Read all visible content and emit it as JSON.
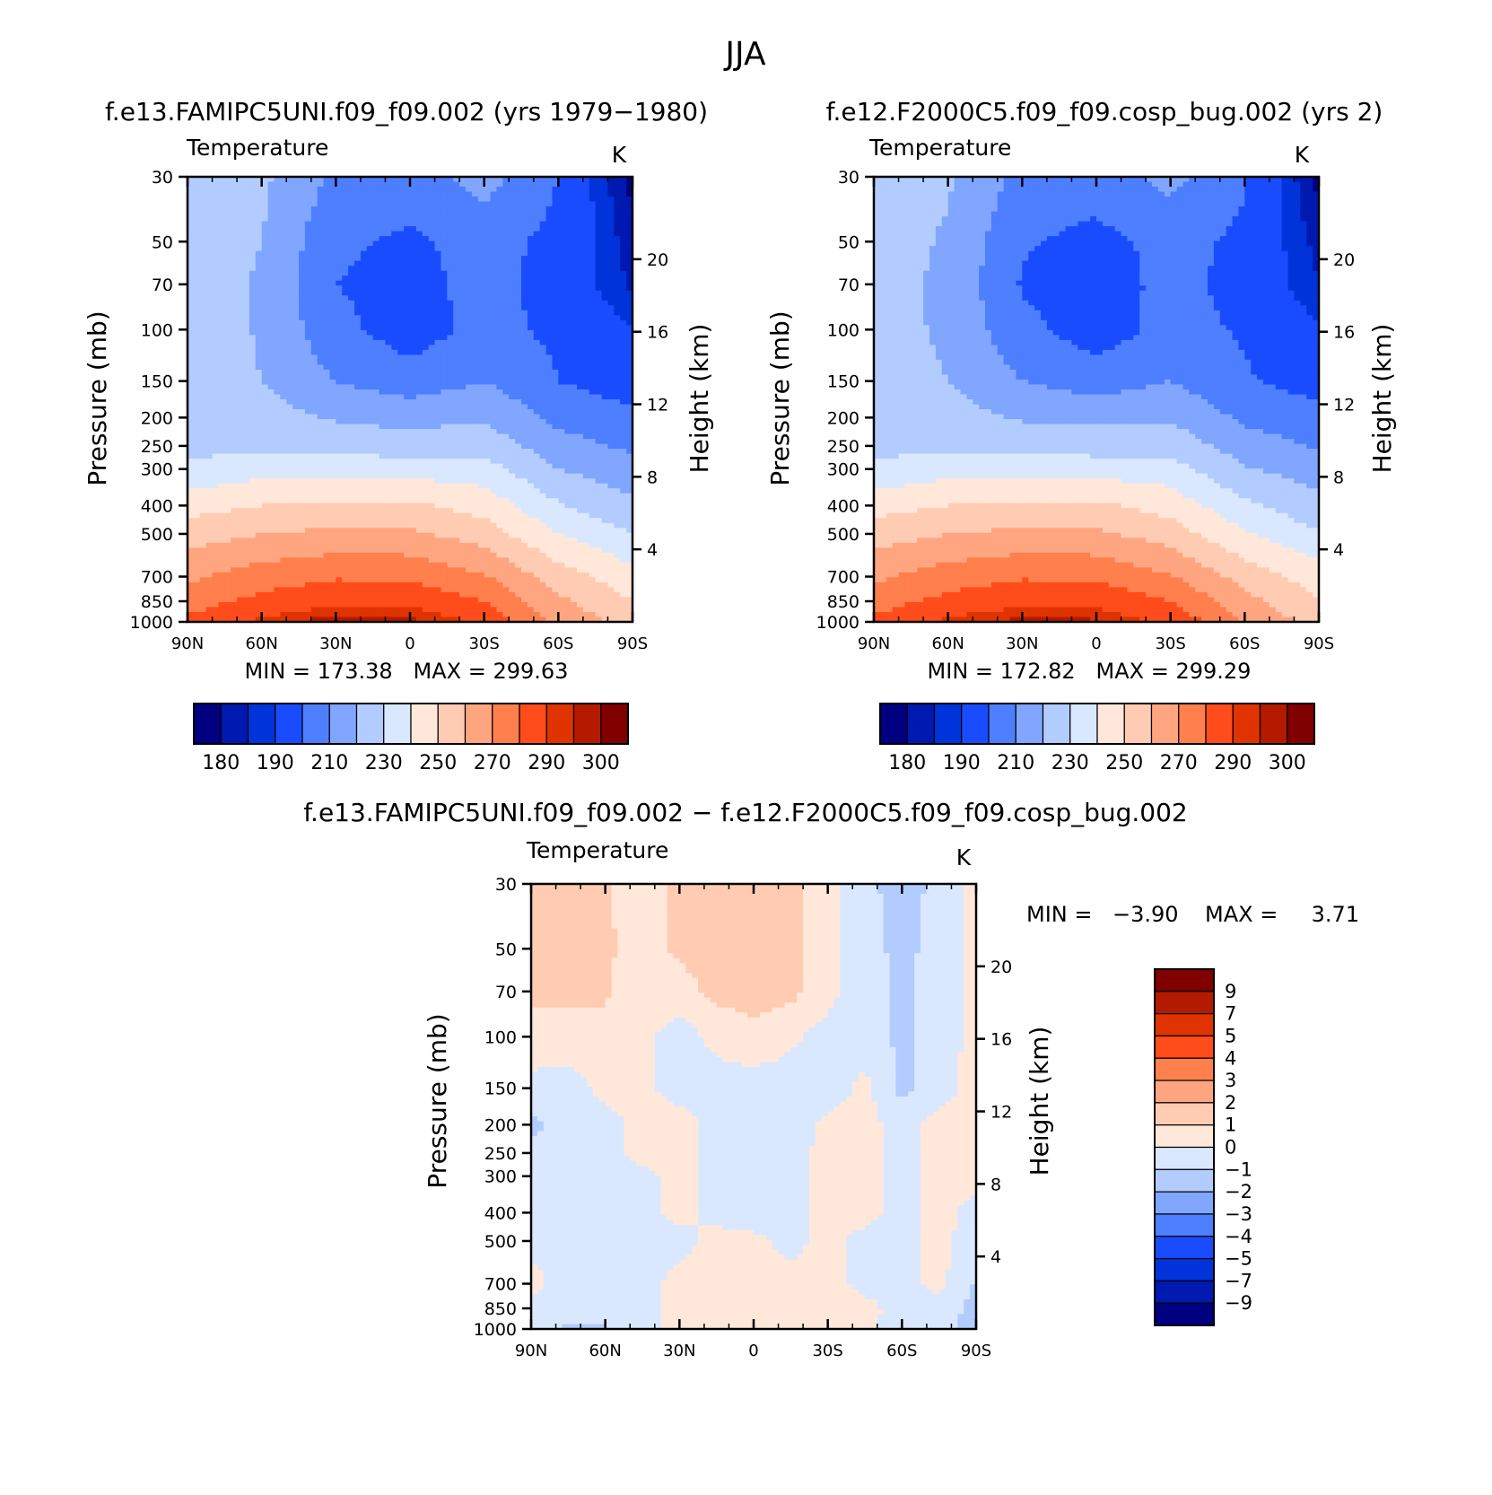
{
  "figure_title": "JJA",
  "panels": {
    "top_left": {
      "case_title": "f.e13.FAMIPC5UNI.f09_f09.002 (yrs 1979−1980)",
      "var_label": "Temperature",
      "units": "K",
      "left_axis_label": "Pressure (mb)",
      "right_axis_label": "Height (km)",
      "minmax_text": "MIN = 173.38   MAX = 299.63"
    },
    "top_right": {
      "case_title": "f.e12.F2000C5.f09_f09.cosp_bug.002 (yrs 2)",
      "var_label": "Temperature",
      "units": "K",
      "left_axis_label": "Pressure (mb)",
      "right_axis_label": "Height (km)",
      "minmax_text": "MIN = 172.82   MAX = 299.29"
    },
    "bottom": {
      "case_title": "f.e13.FAMIPC5UNI.f09_f09.002 − f.e12.F2000C5.f09_f09.cosp_bug.002",
      "var_label": "Temperature",
      "units": "K",
      "left_axis_label": "Pressure (mb)",
      "right_axis_label": "Height (km)",
      "min_label": "MIN =",
      "min_value": "−3.90",
      "max_label": "MAX =",
      "max_value": "3.71"
    }
  },
  "axes": {
    "x_ticks": [
      {
        "lat": 90,
        "label": "90N"
      },
      {
        "lat": 60,
        "label": "60N"
      },
      {
        "lat": 30,
        "label": "30N"
      },
      {
        "lat": 0,
        "label": "0"
      },
      {
        "lat": -30,
        "label": "30S"
      },
      {
        "lat": -60,
        "label": "60S"
      },
      {
        "lat": -90,
        "label": "90S"
      }
    ],
    "pressure_ticks": [
      30,
      50,
      70,
      100,
      150,
      200,
      250,
      300,
      400,
      500,
      700,
      850,
      1000
    ],
    "pressure_range_mb": [
      30,
      1000
    ],
    "height_ticks_km": [
      4,
      8,
      12,
      16,
      20
    ],
    "lat_range": [
      90,
      -90
    ]
  },
  "colors": {
    "cool": [
      "#000080",
      "#0019b0",
      "#0033d9",
      "#1a4cff",
      "#4d7fff",
      "#80a6ff",
      "#b3ccff",
      "#d9e8ff"
    ],
    "warm": [
      "#ffe8d9",
      "#ffccb3",
      "#ffa680",
      "#ff7f4d",
      "#ff4c1a",
      "#e03300",
      "#b31a00",
      "#800000"
    ]
  },
  "abs_colorbar": {
    "levels": [
      180,
      185,
      190,
      200,
      210,
      220,
      230,
      240,
      250,
      260,
      270,
      280,
      290,
      295,
      300
    ],
    "labels": [
      "180",
      "190",
      "210",
      "230",
      "250",
      "270",
      "290",
      "300"
    ]
  },
  "diff_colorbar": {
    "levels_top_to_bottom": [
      "9",
      "7",
      "5",
      "4",
      "3",
      "2",
      "1",
      "0",
      "−1",
      "−2",
      "−3",
      "−4",
      "−5",
      "−7",
      "−9"
    ]
  },
  "chart_data": [
    {
      "type": "heatmap",
      "title": "f.e13.FAMIPC5UNI.f09_f09.002 (yrs 1979−1980)",
      "subtitle": "Temperature",
      "units": "K",
      "xlabel": "",
      "ylabel": "Pressure (mb)",
      "y2label": "Height (km)",
      "x": [
        90,
        60,
        30,
        0,
        -30,
        -60,
        -90
      ],
      "y": [
        30,
        50,
        70,
        100,
        150,
        200,
        250,
        300,
        400,
        500,
        700,
        850,
        1000
      ],
      "z": [
        [
          226,
          222,
          208,
          206,
          214,
          200,
          178
        ],
        [
          225,
          220,
          202,
          198,
          204,
          197,
          182
        ],
        [
          225,
          219,
          200,
          196,
          204,
          196,
          184
        ],
        [
          226,
          219,
          203,
          195,
          203,
          198,
          190
        ],
        [
          226,
          220,
          210,
          204,
          210,
          200,
          195
        ],
        [
          225,
          224,
          219,
          217,
          219,
          207,
          202
        ],
        [
          227,
          228,
          226,
          224,
          226,
          214,
          208
        ],
        [
          232,
          236,
          237,
          236,
          234,
          220,
          214
        ],
        [
          246,
          250,
          252,
          252,
          246,
          231,
          222
        ],
        [
          255,
          260,
          262,
          262,
          255,
          240,
          230
        ],
        [
          268,
          275,
          279,
          278,
          271,
          255,
          244
        ],
        [
          275,
          283,
          287,
          287,
          280,
          262,
          250
        ],
        [
          283,
          292,
          298,
          297,
          288,
          268,
          255
        ]
      ],
      "min": 173.38,
      "max": 299.63,
      "levels": [
        180,
        185,
        190,
        200,
        210,
        220,
        230,
        240,
        250,
        260,
        270,
        280,
        290,
        295,
        300
      ]
    },
    {
      "type": "heatmap",
      "title": "f.e12.F2000C5.f09_f09.cosp_bug.002 (yrs 2)",
      "subtitle": "Temperature",
      "units": "K",
      "xlabel": "",
      "ylabel": "Pressure (mb)",
      "y2label": "Height (km)",
      "x": [
        90,
        60,
        30,
        0,
        -30,
        -60,
        -90
      ],
      "y": [
        30,
        50,
        70,
        100,
        150,
        200,
        250,
        300,
        400,
        500,
        700,
        850,
        1000
      ],
      "z": [
        [
          225,
          221,
          207,
          205,
          213,
          201,
          178
        ],
        [
          224,
          219,
          201,
          197,
          203,
          198,
          183
        ],
        [
          224,
          218,
          199,
          195,
          203,
          197,
          185
        ],
        [
          225,
          218,
          203,
          195,
          203,
          199,
          191
        ],
        [
          226,
          220,
          210,
          205,
          210,
          201,
          196
        ],
        [
          225,
          224,
          219,
          218,
          219,
          208,
          203
        ],
        [
          227,
          228,
          226,
          225,
          226,
          215,
          209
        ],
        [
          232,
          236,
          237,
          236,
          234,
          221,
          215
        ],
        [
          246,
          250,
          252,
          252,
          246,
          232,
          223
        ],
        [
          255,
          260,
          262,
          262,
          255,
          241,
          231
        ],
        [
          268,
          275,
          279,
          278,
          271,
          256,
          245
        ],
        [
          275,
          283,
          287,
          287,
          280,
          263,
          251
        ],
        [
          283,
          292,
          297,
          296,
          288,
          269,
          256
        ]
      ],
      "min": 172.82,
      "max": 299.29,
      "levels": [
        180,
        185,
        190,
        200,
        210,
        220,
        230,
        240,
        250,
        260,
        270,
        280,
        290,
        295,
        300
      ]
    },
    {
      "type": "heatmap",
      "title": "f.e13.FAMIPC5UNI.f09_f09.002 − f.e12.F2000C5.f09_f09.cosp_bug.002",
      "subtitle": "Temperature",
      "units": "K",
      "xlabel": "",
      "ylabel": "Pressure (mb)",
      "y2label": "Height (km)",
      "x": [
        90,
        75,
        60,
        45,
        30,
        15,
        0,
        -15,
        -30,
        -45,
        -60,
        -75,
        -90
      ],
      "y": [
        30,
        50,
        70,
        100,
        150,
        200,
        250,
        300,
        400,
        500,
        700,
        850,
        1000
      ],
      "z": [
        [
          1.3,
          1.2,
          1.1,
          0.5,
          1.2,
          1.4,
          1.5,
          1.4,
          0.3,
          -0.6,
          -1.6,
          -0.6,
          0.3
        ],
        [
          1.3,
          1.3,
          1.2,
          0.5,
          1.2,
          1.4,
          1.5,
          1.4,
          0.3,
          -0.6,
          -1.3,
          -0.6,
          0.3
        ],
        [
          1.2,
          1.2,
          1.1,
          0.4,
          0.6,
          1.3,
          1.4,
          1.3,
          0.3,
          -0.5,
          -1.2,
          -0.6,
          0.3
        ],
        [
          0.6,
          0.6,
          0.8,
          0.3,
          -0.5,
          0.3,
          0.7,
          0.2,
          -0.4,
          -0.5,
          -1.2,
          -0.5,
          0.3
        ],
        [
          -0.3,
          -0.5,
          0.3,
          0.2,
          -0.4,
          -0.5,
          -0.5,
          -0.5,
          -0.6,
          0.3,
          -1.3,
          -0.4,
          0.4
        ],
        [
          -1.2,
          -0.6,
          -0.3,
          0.3,
          0.4,
          -0.3,
          -0.5,
          -0.5,
          0.3,
          0.3,
          -0.3,
          0.3,
          0.4
        ],
        [
          -0.8,
          -0.5,
          -0.3,
          0.3,
          0.4,
          -0.3,
          -0.5,
          -0.4,
          0.3,
          0.3,
          -0.3,
          0.3,
          0.3
        ],
        [
          -0.5,
          -0.4,
          -0.3,
          -0.3,
          0.3,
          -0.4,
          -0.5,
          -0.4,
          0.3,
          0.3,
          -0.3,
          0.3,
          0.3
        ],
        [
          -0.4,
          -0.4,
          -0.4,
          -0.3,
          0.3,
          -0.3,
          -0.4,
          -0.3,
          0.3,
          0.3,
          -0.3,
          0.3,
          -0.3
        ],
        [
          -0.3,
          -0.4,
          -0.4,
          -0.3,
          -0.3,
          0.3,
          0.2,
          -0.3,
          0.3,
          -0.3,
          -0.3,
          0.3,
          -0.5
        ],
        [
          0.3,
          -0.4,
          -0.4,
          -0.3,
          0.3,
          0.3,
          0.4,
          0.3,
          0.3,
          -0.3,
          -0.4,
          0.3,
          -1.1
        ],
        [
          -0.4,
          -0.5,
          -0.5,
          -0.3,
          0.4,
          0.5,
          0.8,
          0.4,
          0.4,
          0.3,
          -0.4,
          -0.3,
          -1.4
        ],
        [
          -0.9,
          -1.1,
          -1.1,
          -0.4,
          0.5,
          0.7,
          0.5,
          0.4,
          0.5,
          0.3,
          -0.5,
          -0.6,
          -1.6
        ]
      ],
      "min": -3.9,
      "max": 3.71,
      "levels": [
        -9,
        -7,
        -5,
        -4,
        -3,
        -2,
        -1,
        0,
        1,
        2,
        3,
        4,
        5,
        7,
        9
      ]
    }
  ]
}
